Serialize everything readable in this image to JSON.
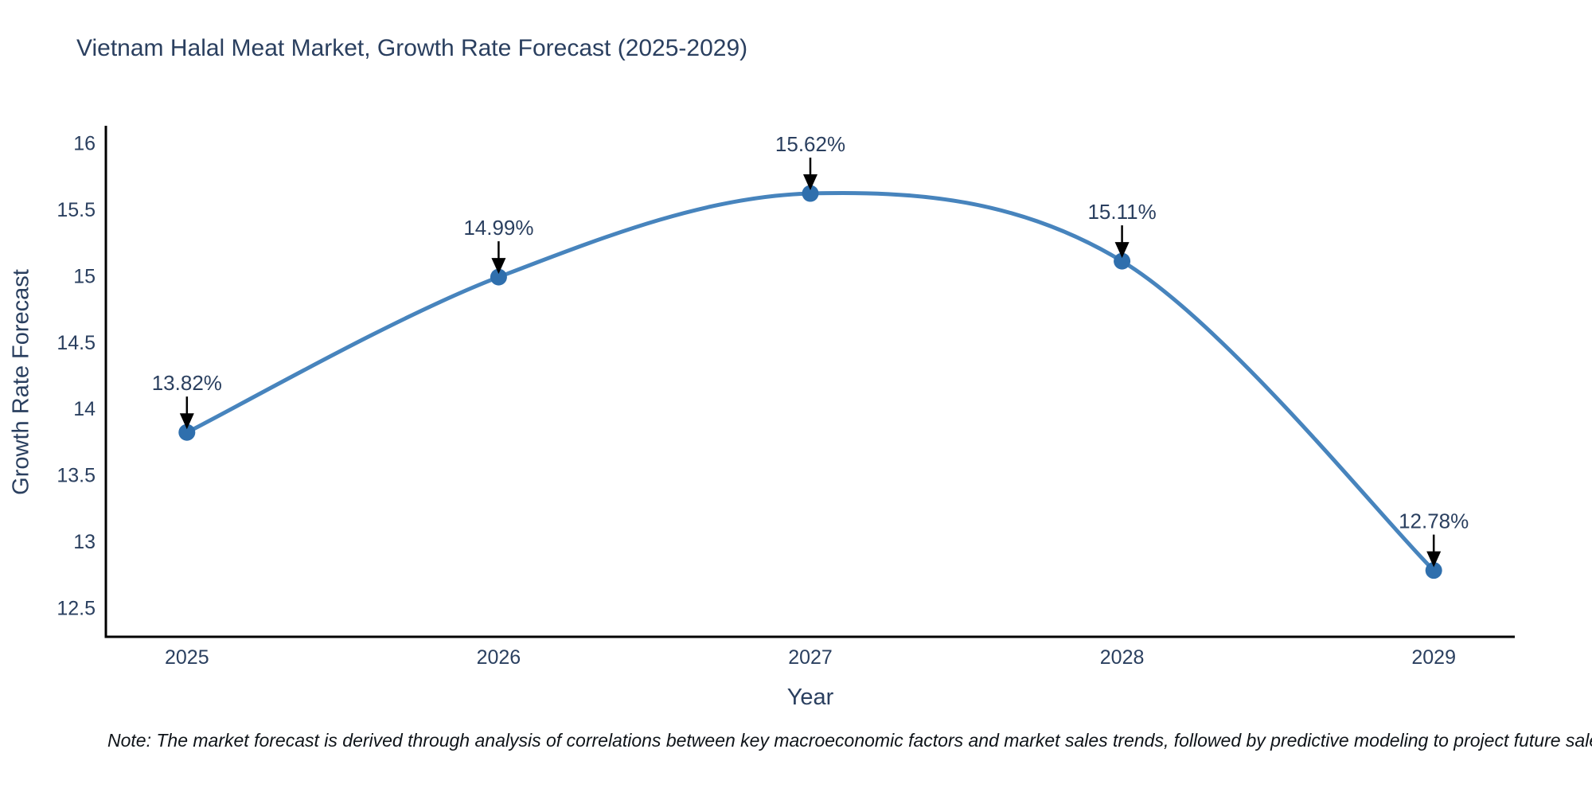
{
  "chart_data": {
    "type": "line",
    "title": "Vietnam Halal Meat Market, Growth Rate Forecast (2025-2029)",
    "xlabel": "Year",
    "ylabel": "Growth Rate Forecast",
    "line_shape": "spline",
    "grid": false,
    "legend": "none",
    "x": [
      2025,
      2026,
      2027,
      2028,
      2029
    ],
    "values": [
      13.82,
      14.99,
      15.62,
      15.11,
      12.78
    ],
    "point_labels": [
      "13.82%",
      "14.99%",
      "15.62%",
      "15.11%",
      "12.78%"
    ],
    "x_ticks": [
      2025,
      2026,
      2027,
      2028,
      2029
    ],
    "y_ticks": [
      12.5,
      13,
      13.5,
      14,
      14.5,
      15,
      15.5,
      16
    ],
    "xlim": [
      2024.74,
      2029.26
    ],
    "ylim": [
      12.28,
      16.13
    ],
    "colors": {
      "line": "#4784bd",
      "marker": "#2f6fad",
      "arrow": "#000000",
      "text": "#2a3f5f",
      "axis": "#000000",
      "background": "#ffffff"
    }
  },
  "note": "Note: The market forecast is derived through analysis of correlations between key macroeconomic factors and market sales trends, followed by predictive modeling to project future sales performance."
}
